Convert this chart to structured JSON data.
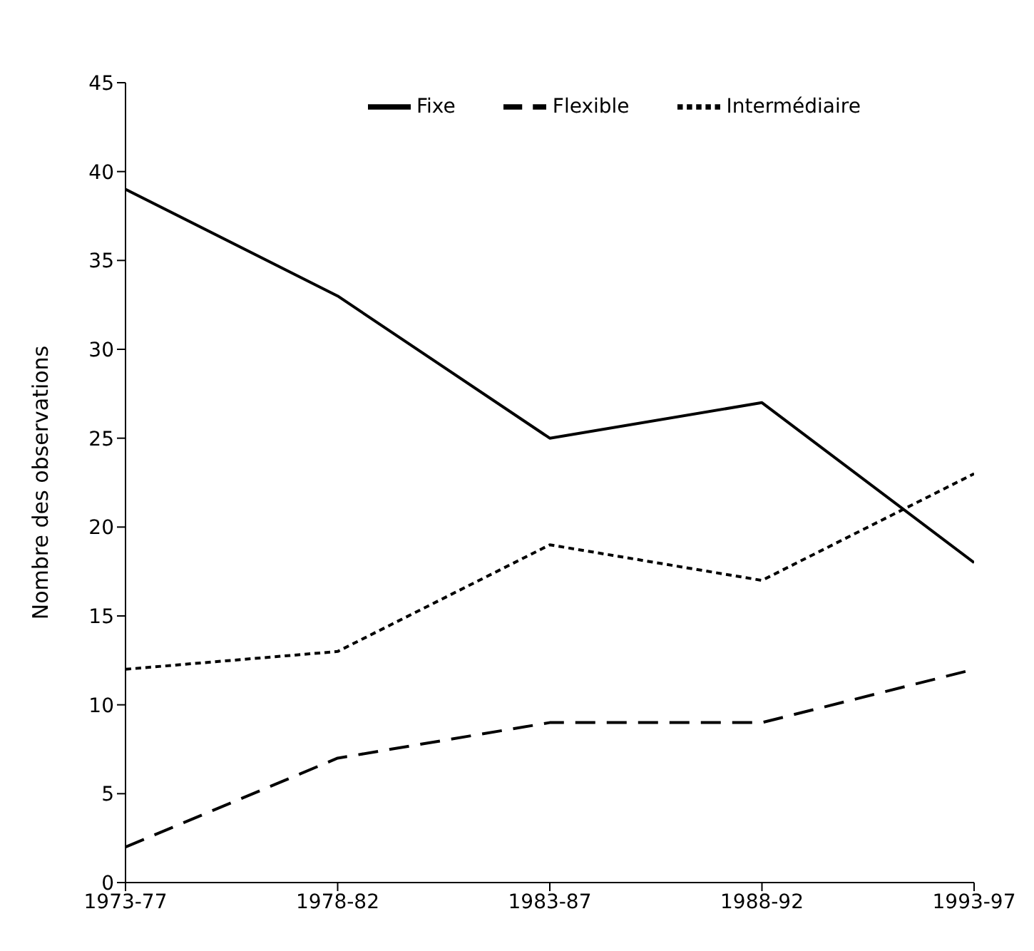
{
  "chart_data": {
    "type": "line",
    "ylabel": "Nombre des observations",
    "categories": [
      "1973-77",
      "1978-82",
      "1983-87",
      "1988-92",
      "1993-97"
    ],
    "series": [
      {
        "name": "Fixe",
        "color": "#000000",
        "line_style": "solid",
        "values": [
          39,
          33,
          25,
          27,
          18
        ]
      },
      {
        "name": "Intermédiaire",
        "color": "#000000",
        "line_style": "dotted",
        "values": [
          12,
          13,
          19,
          17,
          23
        ]
      },
      {
        "name": "Flexible",
        "color": "#000000",
        "line_style": "dashed",
        "values": [
          2,
          7,
          9,
          9,
          12
        ]
      }
    ],
    "ylim": [
      0,
      45
    ],
    "yticks": [
      0,
      5,
      10,
      15,
      20,
      25,
      30,
      35,
      40,
      45
    ],
    "grid": false,
    "legend": "top",
    "marker": "none"
  }
}
